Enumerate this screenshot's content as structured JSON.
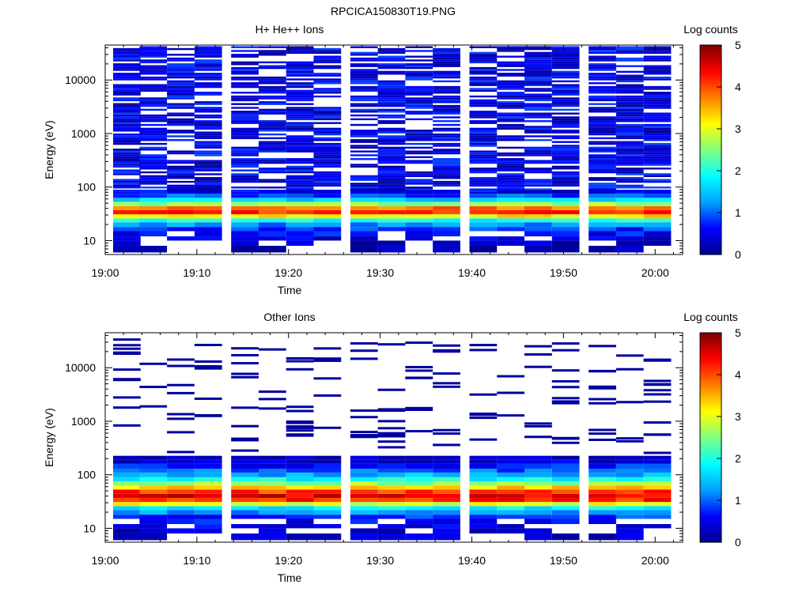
{
  "figure_title": "RPCICA150830T19.PNG",
  "colormap": [
    "#00008f",
    "#0000ff",
    "#00a0ff",
    "#00ffff",
    "#80ff80",
    "#ffff00",
    "#ff8000",
    "#ff0000",
    "#800000"
  ],
  "chart_data": [
    {
      "type": "heatmap",
      "title": "H+ He++ Ions",
      "xlabel": "Time",
      "ylabel": "Energy (eV)",
      "yscale": "log",
      "ylim": [
        5.5,
        45000
      ],
      "xlim": [
        "19:00",
        "20:03"
      ],
      "x_ticks": [
        "19:00",
        "19:10",
        "19:20",
        "19:30",
        "19:40",
        "19:50",
        "20:00"
      ],
      "y_ticks": [
        "10",
        "100",
        "1000",
        "10000"
      ],
      "colorbar": {
        "label": "Log counts",
        "range": [
          0,
          5
        ],
        "ticks": [
          "0",
          "1",
          "2",
          "3",
          "4",
          "5"
        ]
      },
      "time_bins": [
        "19:01",
        "19:04",
        "19:07",
        "19:10",
        "19:14",
        "19:17",
        "19:20",
        "19:23",
        "19:27",
        "19:30",
        "19:33",
        "19:36",
        "19:40",
        "19:43",
        "19:46",
        "19:49",
        "19:53",
        "19:56",
        "19:59"
      ],
      "profile": {
        "energy_low": [
          6,
          8,
          10,
          12,
          15,
          18,
          22,
          26,
          31,
          37,
          44,
          53,
          63,
          75
        ],
        "log_counts_low": [
          0.1,
          0.3,
          0.4,
          0.6,
          0.8,
          1.2,
          2.0,
          3.2,
          4.1,
          3.8,
          2.6,
          1.6,
          0.9,
          0.5
        ],
        "upper_band_eV": [
          80,
          40000
        ],
        "upper_band_log_counts": "0.1 - 0.9 with gaps (zero counts)"
      }
    },
    {
      "type": "heatmap",
      "title": "Other Ions",
      "xlabel": "Time",
      "ylabel": "Energy (eV)",
      "yscale": "log",
      "ylim": [
        5.5,
        45000
      ],
      "xlim": [
        "19:00",
        "20:03"
      ],
      "x_ticks": [
        "19:00",
        "19:10",
        "19:20",
        "19:30",
        "19:40",
        "19:50",
        "20:00"
      ],
      "y_ticks": [
        "10",
        "100",
        "1000",
        "10000"
      ],
      "colorbar": {
        "label": "Log counts",
        "range": [
          0,
          5
        ],
        "ticks": [
          "0",
          "1",
          "2",
          "3",
          "4",
          "5"
        ]
      },
      "time_bins": [
        "19:01",
        "19:04",
        "19:07",
        "19:10",
        "19:14",
        "19:17",
        "19:20",
        "19:23",
        "19:27",
        "19:30",
        "19:33",
        "19:36",
        "19:40",
        "19:43",
        "19:46",
        "19:49",
        "19:53",
        "19:56",
        "19:59"
      ],
      "profile": {
        "energy_low": [
          6,
          8,
          10,
          12,
          15,
          18,
          22,
          26,
          31,
          37,
          44,
          53,
          63,
          75,
          90,
          110,
          130,
          160,
          190
        ],
        "log_counts_low": [
          0.3,
          0.4,
          0.5,
          0.6,
          0.8,
          1.2,
          1.8,
          3.0,
          4.2,
          4.5,
          4.1,
          3.3,
          2.6,
          1.9,
          1.4,
          1.0,
          0.7,
          0.4,
          0.2
        ],
        "sparse_high_energy_counts": "isolated single-count bins (log ~0.1) between 250 eV and 35000 eV"
      }
    }
  ]
}
